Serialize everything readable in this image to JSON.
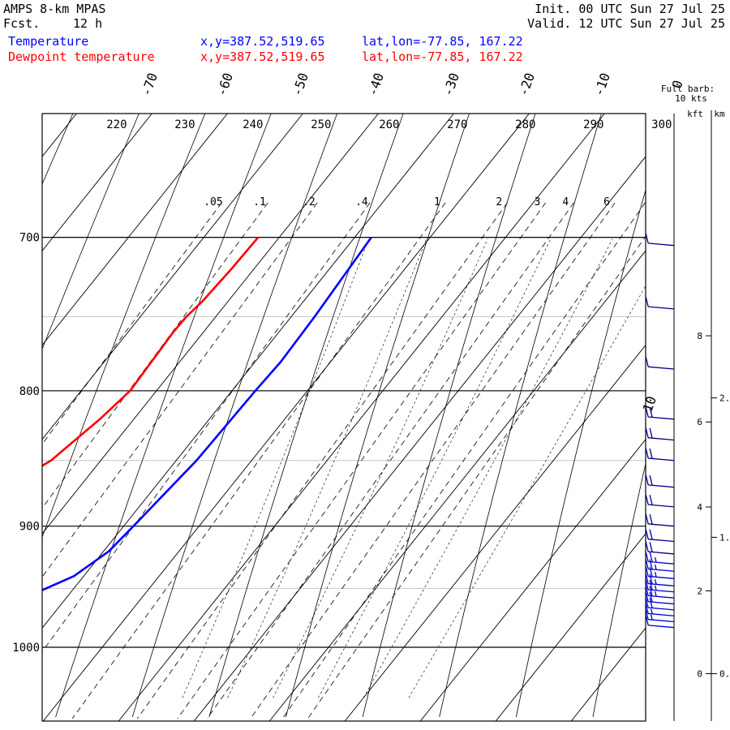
{
  "header": {
    "model": "AMPS 8-km MPAS",
    "fcst_label": "Fcst.",
    "fcst_value": "12 h",
    "init": "Init. 00 UTC Sun 27 Jul 25",
    "valid": "Valid. 12 UTC Sun 27 Jul 25"
  },
  "legend": [
    {
      "name": "Temperature",
      "xy": "x,y=387.52,519.65",
      "latlon": "lat,lon=-77.85, 167.22",
      "color": "#0000ff"
    },
    {
      "name": "Dewpoint temperature",
      "xy": "x,y=387.52,519.65",
      "latlon": "lat,lon=-77.85, 167.22",
      "color": "#ff0000"
    }
  ],
  "barb_legend": {
    "line1": "Full barb:",
    "line2": "10 kts"
  },
  "height_units": {
    "kft": "kft",
    "km": "km"
  },
  "chart_data": {
    "type": "line",
    "diagram": "skew-T log-p",
    "y_axis": {
      "quantity": "pressure (hPa)",
      "scale": "log",
      "range": [
        1045,
        700
      ],
      "ticks": [
        700,
        800,
        900,
        1000
      ]
    },
    "isotherm_labels": [
      "-70",
      "-60",
      "-50",
      "-40",
      "-30",
      "-20",
      "-10",
      "0",
      "10"
    ],
    "dry_adiabat_labels": [
      "220",
      "230",
      "240",
      "250",
      "260",
      "270",
      "280",
      "290",
      "300"
    ],
    "mixing_ratio_labels": [
      ".05",
      ".1",
      ".2",
      ".4",
      "1",
      "2",
      "3",
      "4",
      "6"
    ],
    "kft_labels": [
      "0",
      "2",
      "4",
      "6",
      "8"
    ],
    "km_labels": [
      "0.",
      "1.",
      "2."
    ],
    "grid": true,
    "series": [
      {
        "name": "Temperature",
        "color": "#0000ff",
        "points": [
          [
            700,
            -27.8
          ],
          [
            750,
            -26.9
          ],
          [
            780,
            -26.6
          ],
          [
            800,
            -26.9
          ],
          [
            850,
            -27.3
          ],
          [
            900,
            -28.7
          ],
          [
            920,
            -29.3
          ],
          [
            940,
            -31.3
          ],
          [
            960,
            -36.0
          ],
          [
            968,
            -40.9
          ],
          [
            974,
            -50.0
          ]
        ]
      },
      {
        "name": "Dewpoint temperature",
        "color": "#ff0000",
        "points": [
          [
            700,
            -42.8
          ],
          [
            720,
            -43.0
          ],
          [
            740,
            -43.4
          ],
          [
            750,
            -43.9
          ],
          [
            760,
            -44.0
          ],
          [
            800,
            -43.5
          ],
          [
            820,
            -44.5
          ],
          [
            850,
            -46.6
          ],
          [
            860,
            -48.1
          ],
          [
            870,
            -47.5
          ],
          [
            880,
            -48.4
          ],
          [
            900,
            -50.0
          ],
          [
            915,
            -51.3
          ],
          [
            930,
            -51.2
          ],
          [
            945,
            -50.6
          ],
          [
            960,
            -49.1
          ],
          [
            965,
            -48.6
          ],
          [
            968,
            -47.8
          ],
          [
            974,
            -50.0
          ]
        ]
      }
    ],
    "winds": {
      "units": "kts",
      "direction_deg": 275,
      "levels": [
        {
          "p": 705,
          "speed": 10
        },
        {
          "p": 745,
          "speed": 10
        },
        {
          "p": 785,
          "speed": 10
        },
        {
          "p": 820,
          "speed": 20
        },
        {
          "p": 835,
          "speed": 20
        },
        {
          "p": 850,
          "speed": 20
        },
        {
          "p": 870,
          "speed": 20
        },
        {
          "p": 885,
          "speed": 20
        },
        {
          "p": 900,
          "speed": 20
        },
        {
          "p": 912,
          "speed": 20
        },
        {
          "p": 922,
          "speed": 20
        },
        {
          "p": 930,
          "speed": 25
        },
        {
          "p": 936,
          "speed": 25
        },
        {
          "p": 942,
          "speed": 25
        },
        {
          "p": 948,
          "speed": 25
        },
        {
          "p": 953,
          "speed": 25
        },
        {
          "p": 958,
          "speed": 25
        },
        {
          "p": 963,
          "speed": 20
        },
        {
          "p": 968,
          "speed": 20
        },
        {
          "p": 973,
          "speed": 15
        },
        {
          "p": 978,
          "speed": 15
        },
        {
          "p": 983,
          "speed": 10
        }
      ]
    }
  }
}
